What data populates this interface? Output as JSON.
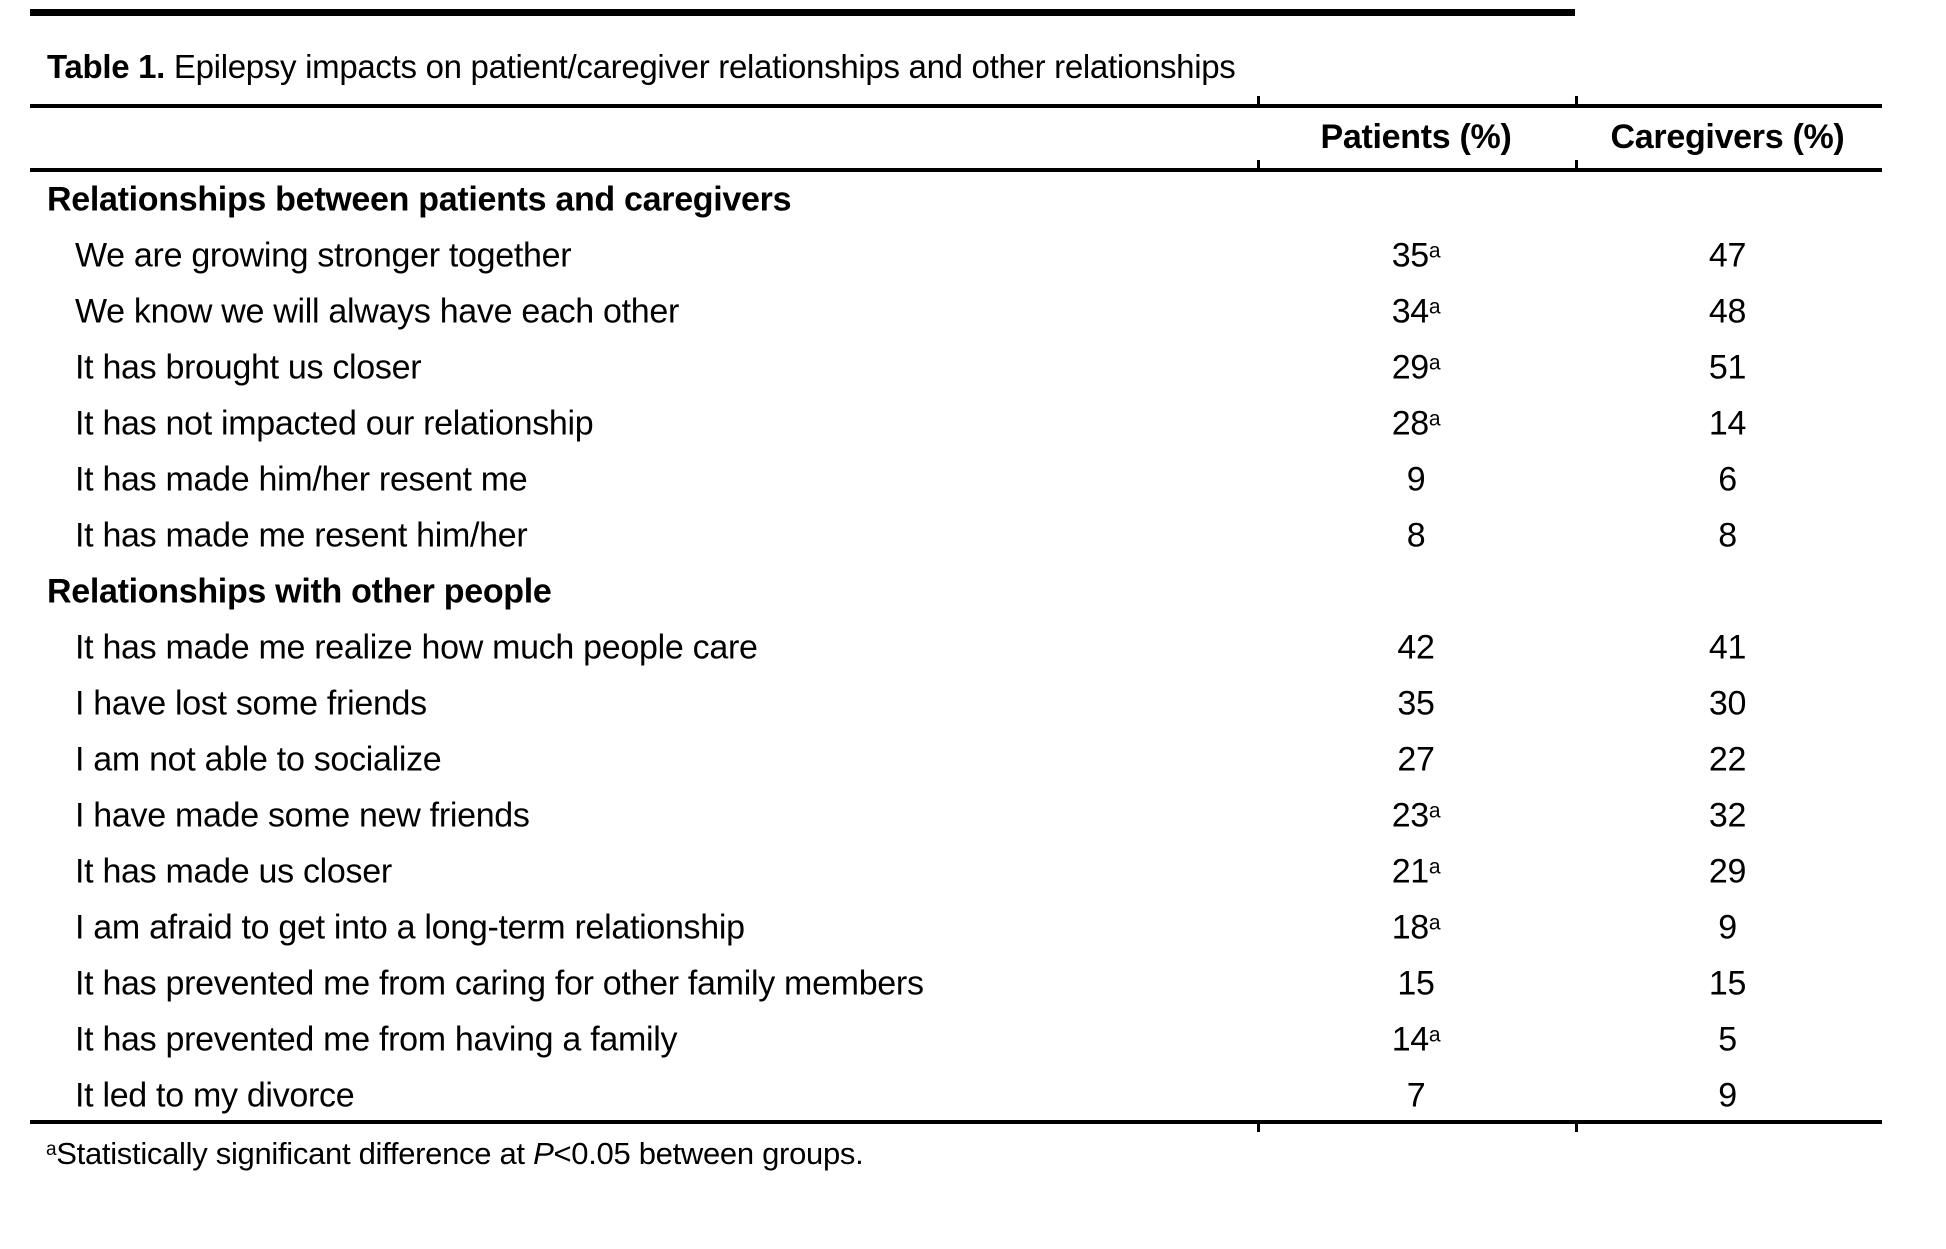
{
  "title": {
    "label": "Table 1.",
    "text": " Epilepsy impacts on patient/caregiver relationships and other relationships"
  },
  "columns": {
    "patients": "Patients (%)",
    "caregivers": "Caregivers (%)"
  },
  "table": {
    "sections": [
      {
        "header": "Relationships between patients and caregivers",
        "rows": [
          {
            "label": "We are growing stronger together",
            "patients": "35",
            "patients_sup": "a",
            "caregivers": "47"
          },
          {
            "label": "We know we will always have each other",
            "patients": "34",
            "patients_sup": "a",
            "caregivers": "48"
          },
          {
            "label": "It has brought us closer",
            "patients": "29",
            "patients_sup": "a",
            "caregivers": "51"
          },
          {
            "label": "It has not impacted our relationship",
            "patients": "28",
            "patients_sup": "a",
            "caregivers": "14"
          },
          {
            "label": "It has made him/her resent me",
            "patients": "9",
            "caregivers": "6"
          },
          {
            "label": "It has made me resent him/her",
            "patients": "8",
            "caregivers": "8"
          }
        ]
      },
      {
        "header": "Relationships with other people",
        "rows": [
          {
            "label": "It has made me realize how much people care",
            "patients": "42",
            "caregivers": "41"
          },
          {
            "label": "I have lost some friends",
            "patients": "35",
            "caregivers": "30"
          },
          {
            "label": "I am not able to socialize",
            "patients": "27",
            "caregivers": "22"
          },
          {
            "label": "I have made some new friends",
            "patients": "23",
            "patients_sup": "a",
            "caregivers": "32"
          },
          {
            "label": "It has made us closer",
            "patients": "21",
            "patients_sup": "a",
            "caregivers": "29"
          },
          {
            "label": "I am afraid to get into a long-term relationship",
            "patients": "18",
            "patients_sup": "a",
            "caregivers": "9"
          },
          {
            "label": "It has prevented me from caring for other family members",
            "patients": "15",
            "caregivers": "15"
          },
          {
            "label": "It has prevented me from having a family",
            "patients": "14",
            "patients_sup": "a",
            "caregivers": "5"
          },
          {
            "label": "It led to my divorce",
            "patients": "7",
            "caregivers": "9"
          }
        ]
      }
    ]
  },
  "footnote": {
    "sup": "a",
    "text_before": "Statistically significant difference at ",
    "p_symbol": "P",
    "text_after": "<0.05 between groups."
  },
  "colors": {
    "text": "#000000",
    "background": "#ffffff",
    "rule": "#000000"
  }
}
